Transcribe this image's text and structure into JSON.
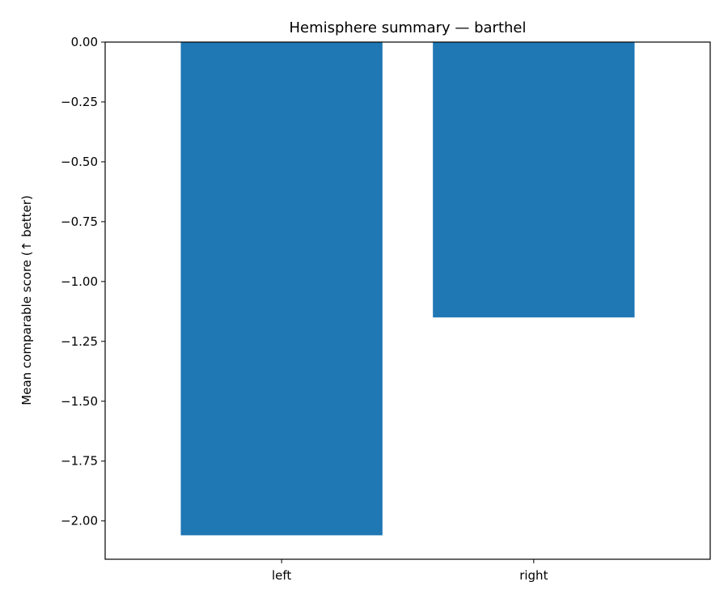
{
  "chart_data": {
    "type": "bar",
    "title": "Hemisphere summary — barthel",
    "xlabel": "",
    "ylabel": "Mean comparable score (↑ better)",
    "categories": [
      "left",
      "right"
    ],
    "values": [
      -2.06,
      -1.15
    ],
    "ylim": [
      -2.16,
      0.0
    ],
    "yticks": [
      0.0,
      -0.25,
      -0.5,
      -0.75,
      -1.0,
      -1.25,
      -1.5,
      -1.75,
      -2.0
    ],
    "ytick_labels": [
      "0.00",
      "−0.25",
      "−0.50",
      "−0.75",
      "−1.00",
      "−1.25",
      "−1.50",
      "−1.75",
      "−2.00"
    ],
    "bar_color": "#1f77b4",
    "grid": false,
    "legend": false
  }
}
